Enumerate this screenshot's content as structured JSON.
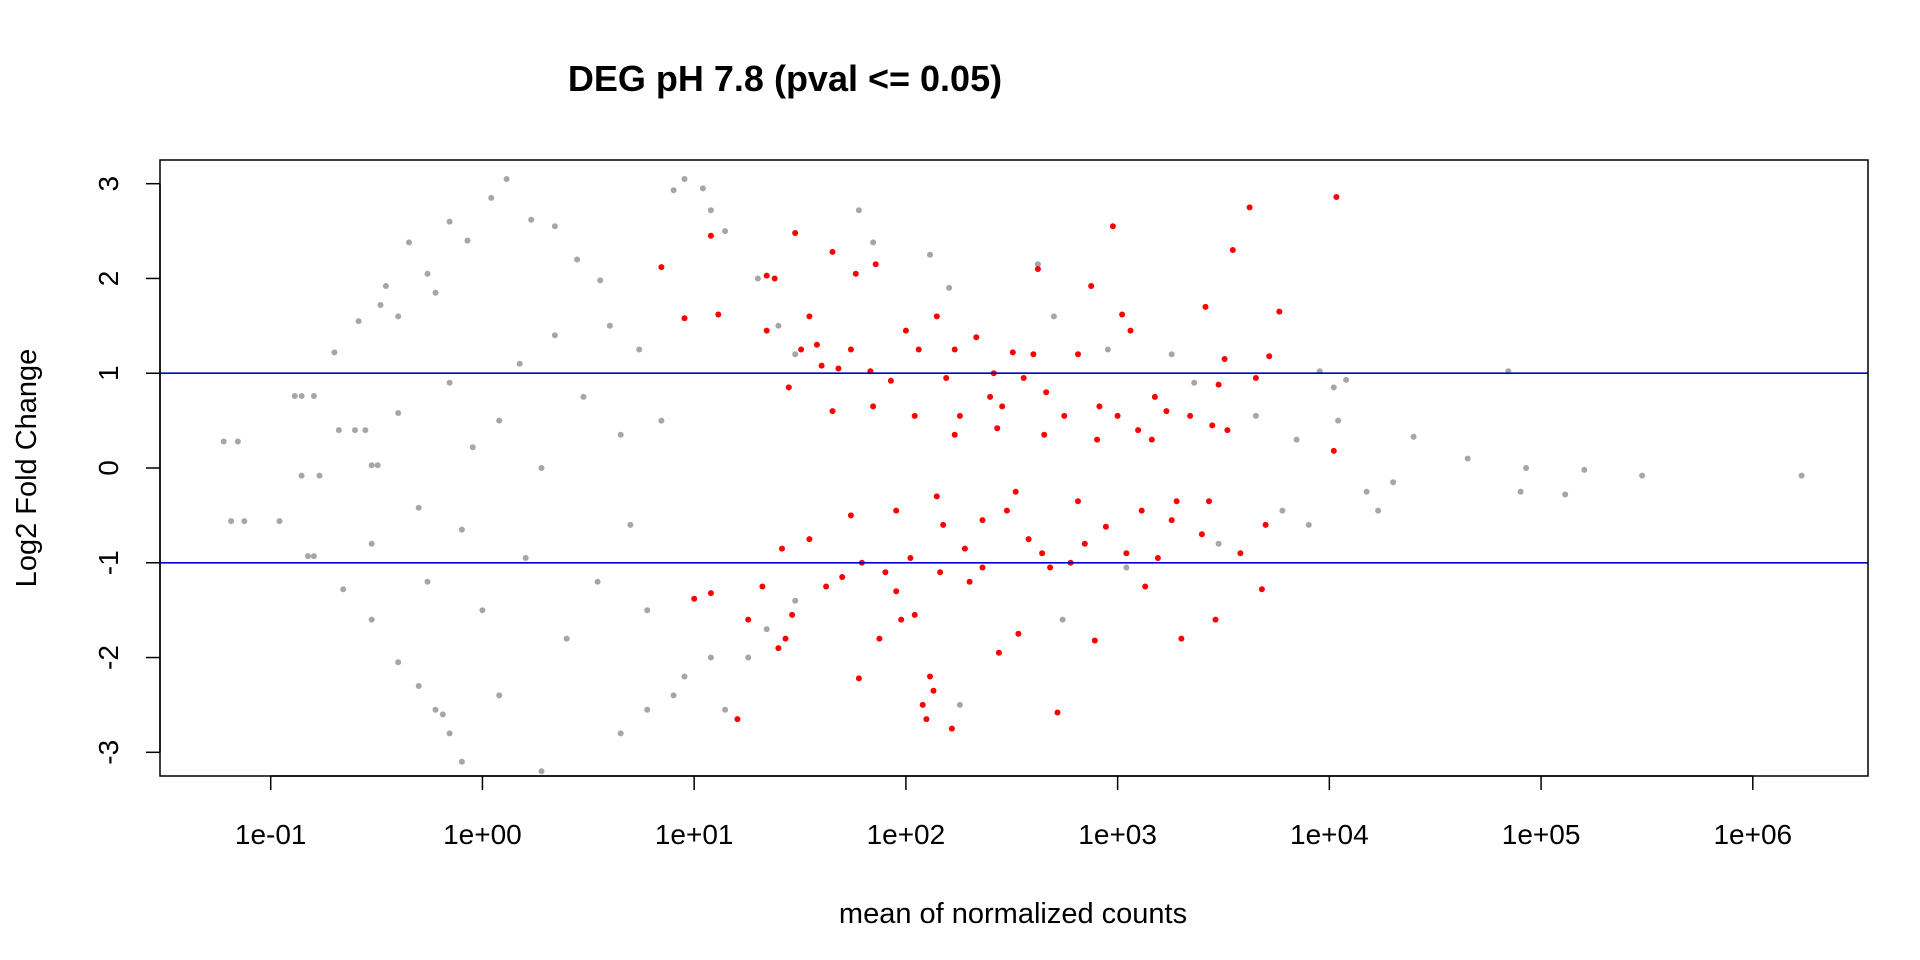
{
  "chart_data": {
    "type": "scatter",
    "title": "DEG pH 7.8  (pval <= 0.05)",
    "xlabel": "mean of normalized counts",
    "ylabel": "Log2 Fold Change",
    "x_scale": "log10",
    "xlim": [
      0.03,
      3500000
    ],
    "ylim": [
      -3.25,
      3.25
    ],
    "x_ticks": [
      0.1,
      1,
      10,
      100,
      1000,
      10000,
      100000,
      1000000
    ],
    "x_tick_labels": [
      "1e-01",
      "1e+00",
      "1e+01",
      "1e+02",
      "1e+03",
      "1e+04",
      "1e+05",
      "1e+06"
    ],
    "y_ticks": [
      -3,
      -2,
      -1,
      0,
      1,
      2,
      3
    ],
    "y_tick_labels": [
      "-3",
      "-2",
      "-1",
      "0",
      "1",
      "2",
      "3"
    ],
    "hlines": [
      1,
      -1
    ],
    "grid": false,
    "colors": {
      "not_significant": "#a6a6a6",
      "significant": "#ff0000",
      "hline": "#0000cd"
    },
    "series": [
      {
        "values": [
          [
            0.06,
            0.28
          ],
          [
            0.07,
            0.28
          ],
          [
            0.065,
            -0.56
          ],
          [
            0.075,
            -0.56
          ],
          [
            0.11,
            -0.56
          ],
          [
            0.13,
            0.76
          ],
          [
            0.14,
            0.76
          ],
          [
            0.16,
            0.76
          ],
          [
            0.14,
            -0.08
          ],
          [
            0.17,
            -0.08
          ],
          [
            0.15,
            -0.93
          ],
          [
            0.16,
            -0.93
          ],
          [
            0.2,
            1.22
          ],
          [
            0.21,
            0.4
          ],
          [
            0.25,
            0.4
          ],
          [
            0.28,
            0.4
          ],
          [
            0.22,
            -1.28
          ],
          [
            0.3,
            -0.8
          ],
          [
            0.3,
            0.03
          ],
          [
            0.32,
            0.03
          ],
          [
            0.26,
            1.55
          ],
          [
            0.33,
            1.72
          ],
          [
            0.35,
            1.92
          ],
          [
            0.4,
            1.6
          ],
          [
            0.45,
            2.38
          ],
          [
            0.55,
            2.05
          ],
          [
            0.6,
            1.85
          ],
          [
            0.7,
            2.6
          ],
          [
            0.85,
            2.4
          ],
          [
            1.1,
            2.85
          ],
          [
            1.3,
            3.05
          ],
          [
            1.7,
            2.62
          ],
          [
            2.2,
            2.55
          ],
          [
            2.8,
            2.2
          ],
          [
            3.6,
            1.98
          ],
          [
            0.3,
            -1.6
          ],
          [
            0.4,
            -2.05
          ],
          [
            0.5,
            -2.3
          ],
          [
            0.6,
            -2.55
          ],
          [
            0.65,
            -2.6
          ],
          [
            0.7,
            -2.8
          ],
          [
            0.8,
            -3.1
          ],
          [
            1.2,
            -2.4
          ],
          [
            1.9,
            -3.2
          ],
          [
            0.4,
            0.58
          ],
          [
            0.5,
            -0.42
          ],
          [
            0.55,
            -1.2
          ],
          [
            0.7,
            0.9
          ],
          [
            0.8,
            -0.65
          ],
          [
            0.9,
            0.22
          ],
          [
            1.0,
            -1.5
          ],
          [
            1.2,
            0.5
          ],
          [
            1.5,
            1.1
          ],
          [
            1.6,
            -0.95
          ],
          [
            1.9,
            0.0
          ],
          [
            2.2,
            1.4
          ],
          [
            2.5,
            -1.8
          ],
          [
            3.0,
            0.75
          ],
          [
            3.5,
            -1.2
          ],
          [
            4.0,
            1.5
          ],
          [
            4.5,
            0.35
          ],
          [
            5.0,
            -0.6
          ],
          [
            5.5,
            1.25
          ],
          [
            6.0,
            -1.5
          ],
          [
            7.0,
            0.5
          ],
          [
            8.0,
            2.93
          ],
          [
            9.0,
            3.05
          ],
          [
            11,
            2.95
          ],
          [
            12,
            2.72
          ],
          [
            14,
            2.5
          ],
          [
            4.5,
            -2.8
          ],
          [
            6,
            -2.55
          ],
          [
            8,
            -2.4
          ],
          [
            9,
            -2.2
          ],
          [
            12,
            -2.0
          ],
          [
            14,
            -2.55
          ],
          [
            20,
            2.0
          ],
          [
            25,
            1.5
          ],
          [
            30,
            1.2
          ],
          [
            18,
            -2.0
          ],
          [
            22,
            -1.7
          ],
          [
            30,
            -1.4
          ],
          [
            60,
            2.72
          ],
          [
            70,
            2.38
          ],
          [
            130,
            2.25
          ],
          [
            160,
            1.9
          ],
          [
            180,
            -2.5
          ],
          [
            420,
            2.15
          ],
          [
            500,
            1.6
          ],
          [
            550,
            -1.6
          ],
          [
            900,
            1.25
          ],
          [
            1100,
            -1.05
          ],
          [
            1800,
            1.2
          ],
          [
            2300,
            0.9
          ],
          [
            3000,
            -0.8
          ],
          [
            4500,
            0.55
          ],
          [
            6000,
            -0.45
          ],
          [
            7000,
            0.3
          ],
          [
            8000,
            -0.6
          ],
          [
            9000,
            1.02
          ],
          [
            10500,
            0.85
          ],
          [
            11000,
            0.5
          ],
          [
            12000,
            0.93
          ],
          [
            15000,
            -0.25
          ],
          [
            17000,
            -0.45
          ],
          [
            20000,
            -0.15
          ],
          [
            25000,
            0.33
          ],
          [
            45000,
            0.1
          ],
          [
            70000,
            1.02
          ],
          [
            80000,
            -0.25
          ],
          [
            85000,
            0.0
          ],
          [
            130000,
            -0.28
          ],
          [
            160000,
            -0.02
          ],
          [
            300000,
            -0.08
          ],
          [
            1700000,
            -0.08
          ]
        ]
      },
      {
        "values": [
          [
            7,
            2.12
          ],
          [
            9,
            1.58
          ],
          [
            12,
            2.45
          ],
          [
            13,
            1.62
          ],
          [
            10,
            -1.38
          ],
          [
            12,
            -1.32
          ],
          [
            16,
            -2.65
          ],
          [
            18,
            -1.6
          ],
          [
            21,
            -1.25
          ],
          [
            22,
            2.03
          ],
          [
            24,
            2.0
          ],
          [
            22,
            1.45
          ],
          [
            25,
            -1.9
          ],
          [
            27,
            -1.8
          ],
          [
            29,
            -1.55
          ],
          [
            30,
            2.48
          ],
          [
            32,
            1.25
          ],
          [
            35,
            1.6
          ],
          [
            38,
            1.3
          ],
          [
            40,
            1.08
          ],
          [
            42,
            -1.25
          ],
          [
            45,
            2.28
          ],
          [
            48,
            1.05
          ],
          [
            50,
            -1.15
          ],
          [
            55,
            1.25
          ],
          [
            58,
            2.05
          ],
          [
            60,
            -2.22
          ],
          [
            62,
            -1.0
          ],
          [
            68,
            1.02
          ],
          [
            72,
            2.15
          ],
          [
            75,
            -1.8
          ],
          [
            80,
            -1.1
          ],
          [
            85,
            0.92
          ],
          [
            90,
            -1.3
          ],
          [
            95,
            -1.6
          ],
          [
            100,
            1.45
          ],
          [
            105,
            -0.95
          ],
          [
            110,
            -1.55
          ],
          [
            115,
            1.25
          ],
          [
            120,
            -2.5
          ],
          [
            125,
            -2.65
          ],
          [
            130,
            -2.2
          ],
          [
            135,
            -2.35
          ],
          [
            140,
            1.6
          ],
          [
            145,
            -1.1
          ],
          [
            150,
            -0.6
          ],
          [
            155,
            0.95
          ],
          [
            165,
            -2.75
          ],
          [
            170,
            1.25
          ],
          [
            180,
            0.55
          ],
          [
            190,
            -0.85
          ],
          [
            200,
            -1.2
          ],
          [
            215,
            1.38
          ],
          [
            230,
            -1.05
          ],
          [
            250,
            0.75
          ],
          [
            260,
            1.0
          ],
          [
            275,
            -1.95
          ],
          [
            285,
            0.65
          ],
          [
            300,
            -0.45
          ],
          [
            320,
            1.22
          ],
          [
            340,
            -1.75
          ],
          [
            360,
            0.95
          ],
          [
            380,
            -0.75
          ],
          [
            400,
            1.2
          ],
          [
            420,
            2.1
          ],
          [
            440,
            -0.9
          ],
          [
            460,
            0.8
          ],
          [
            480,
            -1.05
          ],
          [
            520,
            -2.58
          ],
          [
            560,
            0.55
          ],
          [
            600,
            -1.0
          ],
          [
            650,
            1.2
          ],
          [
            700,
            -0.8
          ],
          [
            750,
            1.92
          ],
          [
            780,
            -1.82
          ],
          [
            820,
            0.65
          ],
          [
            880,
            -0.62
          ],
          [
            950,
            2.55
          ],
          [
            1000,
            0.55
          ],
          [
            1050,
            1.62
          ],
          [
            1100,
            -0.9
          ],
          [
            1150,
            1.45
          ],
          [
            1250,
            0.4
          ],
          [
            1350,
            -1.25
          ],
          [
            1450,
            0.3
          ],
          [
            1550,
            -0.95
          ],
          [
            1700,
            0.6
          ],
          [
            1800,
            -0.55
          ],
          [
            2000,
            -1.8
          ],
          [
            2200,
            0.55
          ],
          [
            2500,
            -0.7
          ],
          [
            2600,
            1.7
          ],
          [
            2800,
            0.45
          ],
          [
            2900,
            -1.6
          ],
          [
            3200,
            1.15
          ],
          [
            3500,
            2.3
          ],
          [
            3800,
            -0.9
          ],
          [
            4200,
            2.75
          ],
          [
            4800,
            -1.28
          ],
          [
            5200,
            1.18
          ],
          [
            5800,
            1.65
          ],
          [
            10800,
            2.86
          ],
          [
            10500,
            0.18
          ],
          [
            3000,
            0.88
          ],
          [
            2700,
            -0.35
          ],
          [
            4500,
            0.95
          ],
          [
            5000,
            -0.6
          ],
          [
            3300,
            0.4
          ],
          [
            1900,
            -0.35
          ],
          [
            1500,
            0.75
          ],
          [
            1300,
            -0.45
          ],
          [
            800,
            0.3
          ],
          [
            650,
            -0.35
          ],
          [
            450,
            0.35
          ],
          [
            330,
            -0.25
          ],
          [
            270,
            0.42
          ],
          [
            230,
            -0.55
          ],
          [
            170,
            0.35
          ],
          [
            140,
            -0.3
          ],
          [
            110,
            0.55
          ],
          [
            90,
            -0.45
          ],
          [
            70,
            0.65
          ],
          [
            55,
            -0.5
          ],
          [
            45,
            0.6
          ],
          [
            35,
            -0.75
          ],
          [
            28,
            0.85
          ],
          [
            26,
            -0.85
          ]
        ]
      }
    ]
  }
}
